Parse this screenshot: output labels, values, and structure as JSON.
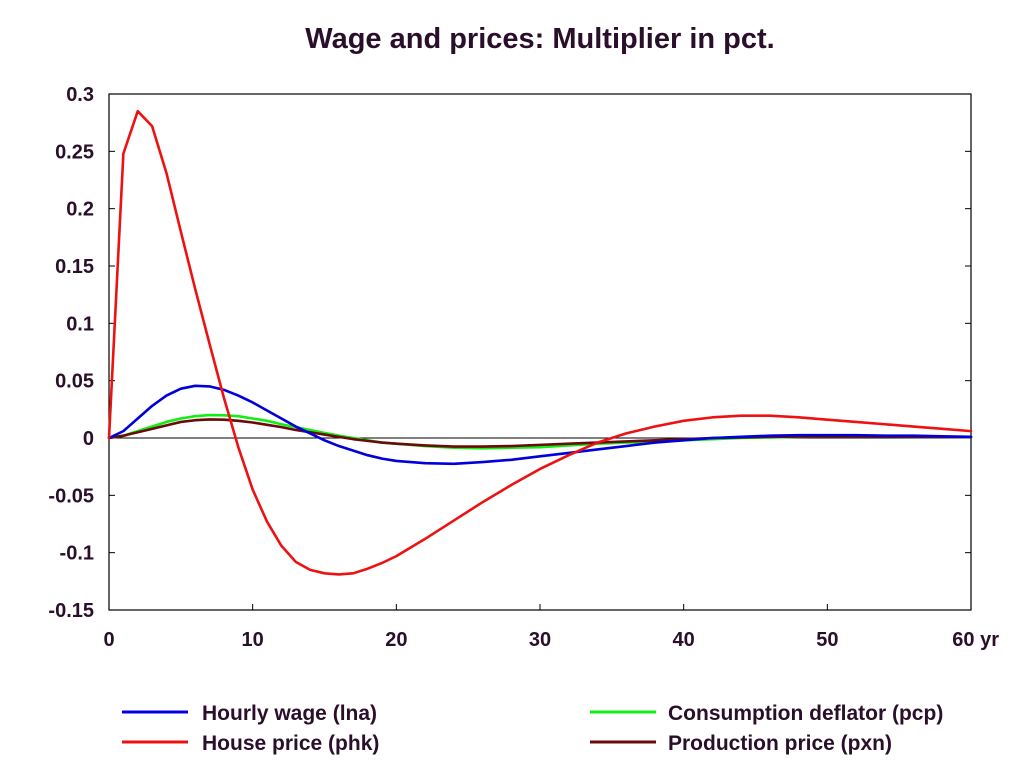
{
  "chart_data": {
    "type": "line",
    "title": "Wage and prices: Multiplier in pct.",
    "xlabel": "",
    "ylabel": "",
    "xlim": [
      0,
      60
    ],
    "ylim": [
      -0.15,
      0.3
    ],
    "grid": false,
    "legend_position": "bottom",
    "x_ticks": [
      {
        "value": 0,
        "label": "0"
      },
      {
        "value": 10,
        "label": "10"
      },
      {
        "value": 20,
        "label": "20"
      },
      {
        "value": 30,
        "label": "30"
      },
      {
        "value": 40,
        "label": "40"
      },
      {
        "value": 50,
        "label": "50"
      },
      {
        "value": 60,
        "label": "60 yr"
      }
    ],
    "y_ticks": [
      {
        "value": 0.3,
        "label": "0.3"
      },
      {
        "value": 0.25,
        "label": "0.25"
      },
      {
        "value": 0.2,
        "label": "0.2"
      },
      {
        "value": 0.15,
        "label": "0.15"
      },
      {
        "value": 0.1,
        "label": "0.1"
      },
      {
        "value": 0.05,
        "label": "0.05"
      },
      {
        "value": 0,
        "label": "0"
      },
      {
        "value": -0.05,
        "label": "-0.05"
      },
      {
        "value": -0.1,
        "label": "-0.1"
      },
      {
        "value": -0.15,
        "label": "-0.15"
      }
    ],
    "series": [
      {
        "name": "Hourly wage (lna)",
        "color": "#0000dd",
        "points": [
          [
            0,
            0
          ],
          [
            1,
            0.006
          ],
          [
            2,
            0.017
          ],
          [
            3,
            0.028
          ],
          [
            4,
            0.037
          ],
          [
            5,
            0.043
          ],
          [
            6,
            0.0455
          ],
          [
            7,
            0.045
          ],
          [
            8,
            0.042
          ],
          [
            9,
            0.037
          ],
          [
            10,
            0.031
          ],
          [
            11,
            0.024
          ],
          [
            12,
            0.017
          ],
          [
            13,
            0.01
          ],
          [
            14,
            0.004
          ],
          [
            15,
            -0.002
          ],
          [
            16,
            -0.007
          ],
          [
            17,
            -0.011
          ],
          [
            18,
            -0.015
          ],
          [
            19,
            -0.018
          ],
          [
            20,
            -0.02
          ],
          [
            22,
            -0.022
          ],
          [
            24,
            -0.0225
          ],
          [
            26,
            -0.021
          ],
          [
            28,
            -0.019
          ],
          [
            30,
            -0.016
          ],
          [
            32,
            -0.013
          ],
          [
            34,
            -0.01
          ],
          [
            36,
            -0.007
          ],
          [
            38,
            -0.004
          ],
          [
            40,
            -0.002
          ],
          [
            42,
            0
          ],
          [
            44,
            0.001
          ],
          [
            46,
            0.002
          ],
          [
            48,
            0.0025
          ],
          [
            50,
            0.0025
          ],
          [
            52,
            0.0025
          ],
          [
            54,
            0.002
          ],
          [
            56,
            0.002
          ],
          [
            58,
            0.0015
          ],
          [
            60,
            0.001
          ]
        ]
      },
      {
        "name": "House price (phk)",
        "color": "#ee1111",
        "points": [
          [
            0,
            0
          ],
          [
            1,
            0.248
          ],
          [
            2,
            0.285
          ],
          [
            3,
            0.272
          ],
          [
            4,
            0.231
          ],
          [
            5,
            0.18
          ],
          [
            6,
            0.13
          ],
          [
            7,
            0.082
          ],
          [
            8,
            0.035
          ],
          [
            9,
            -0.008
          ],
          [
            10,
            -0.045
          ],
          [
            11,
            -0.073
          ],
          [
            12,
            -0.094
          ],
          [
            13,
            -0.108
          ],
          [
            14,
            -0.115
          ],
          [
            15,
            -0.118
          ],
          [
            16,
            -0.119
          ],
          [
            17,
            -0.118
          ],
          [
            18,
            -0.114
          ],
          [
            19,
            -0.109
          ],
          [
            20,
            -0.103
          ],
          [
            22,
            -0.088
          ],
          [
            24,
            -0.072
          ],
          [
            26,
            -0.056
          ],
          [
            28,
            -0.041
          ],
          [
            30,
            -0.027
          ],
          [
            32,
            -0.015
          ],
          [
            34,
            -0.004
          ],
          [
            36,
            0.004
          ],
          [
            38,
            0.01
          ],
          [
            40,
            0.015
          ],
          [
            42,
            0.018
          ],
          [
            44,
            0.0195
          ],
          [
            46,
            0.0195
          ],
          [
            48,
            0.018
          ],
          [
            50,
            0.016
          ],
          [
            52,
            0.014
          ],
          [
            54,
            0.012
          ],
          [
            56,
            0.01
          ],
          [
            58,
            0.008
          ],
          [
            60,
            0.006
          ]
        ]
      },
      {
        "name": "Consumption deflator (pcp)",
        "color": "#11ee11",
        "points": [
          [
            0,
            0
          ],
          [
            1,
            0.002
          ],
          [
            2,
            0.006
          ],
          [
            3,
            0.01
          ],
          [
            4,
            0.014
          ],
          [
            5,
            0.017
          ],
          [
            6,
            0.019
          ],
          [
            7,
            0.02
          ],
          [
            8,
            0.0198
          ],
          [
            9,
            0.019
          ],
          [
            10,
            0.017
          ],
          [
            11,
            0.015
          ],
          [
            12,
            0.012
          ],
          [
            13,
            0.0095
          ],
          [
            14,
            0.007
          ],
          [
            15,
            0.0045
          ],
          [
            16,
            0.002
          ],
          [
            17,
            0
          ],
          [
            18,
            -0.002
          ],
          [
            19,
            -0.004
          ],
          [
            20,
            -0.005
          ],
          [
            22,
            -0.007
          ],
          [
            24,
            -0.0085
          ],
          [
            26,
            -0.009
          ],
          [
            28,
            -0.0085
          ],
          [
            30,
            -0.008
          ],
          [
            32,
            -0.0065
          ],
          [
            34,
            -0.005
          ],
          [
            36,
            -0.004
          ],
          [
            38,
            -0.003
          ],
          [
            40,
            -0.002
          ],
          [
            42,
            -0.001
          ],
          [
            44,
            0
          ],
          [
            46,
            0.0005
          ],
          [
            48,
            0.001
          ],
          [
            50,
            0.0012
          ],
          [
            52,
            0.0012
          ],
          [
            54,
            0.0012
          ],
          [
            56,
            0.001
          ],
          [
            58,
            0.001
          ],
          [
            60,
            0.0008
          ]
        ]
      },
      {
        "name": "Production price (pxn)",
        "color": "#6b0a0a",
        "points": [
          [
            0,
            0
          ],
          [
            1,
            0.002
          ],
          [
            2,
            0.005
          ],
          [
            3,
            0.008
          ],
          [
            4,
            0.011
          ],
          [
            5,
            0.014
          ],
          [
            6,
            0.0155
          ],
          [
            7,
            0.0162
          ],
          [
            8,
            0.016
          ],
          [
            9,
            0.015
          ],
          [
            10,
            0.0135
          ],
          [
            11,
            0.0115
          ],
          [
            12,
            0.0095
          ],
          [
            13,
            0.007
          ],
          [
            14,
            0.005
          ],
          [
            15,
            0.003
          ],
          [
            16,
            0.001
          ],
          [
            17,
            -0.001
          ],
          [
            18,
            -0.0025
          ],
          [
            19,
            -0.004
          ],
          [
            20,
            -0.005
          ],
          [
            22,
            -0.0065
          ],
          [
            24,
            -0.0075
          ],
          [
            26,
            -0.0075
          ],
          [
            28,
            -0.007
          ],
          [
            30,
            -0.006
          ],
          [
            32,
            -0.005
          ],
          [
            34,
            -0.004
          ],
          [
            36,
            -0.003
          ],
          [
            38,
            -0.002
          ],
          [
            40,
            -0.001
          ],
          [
            42,
            0
          ],
          [
            44,
            0.0005
          ],
          [
            46,
            0.001
          ],
          [
            48,
            0.0012
          ],
          [
            50,
            0.0012
          ],
          [
            52,
            0.0012
          ],
          [
            54,
            0.0011
          ],
          [
            56,
            0.001
          ],
          [
            58,
            0.0009
          ],
          [
            60,
            0.0008
          ]
        ]
      }
    ]
  }
}
